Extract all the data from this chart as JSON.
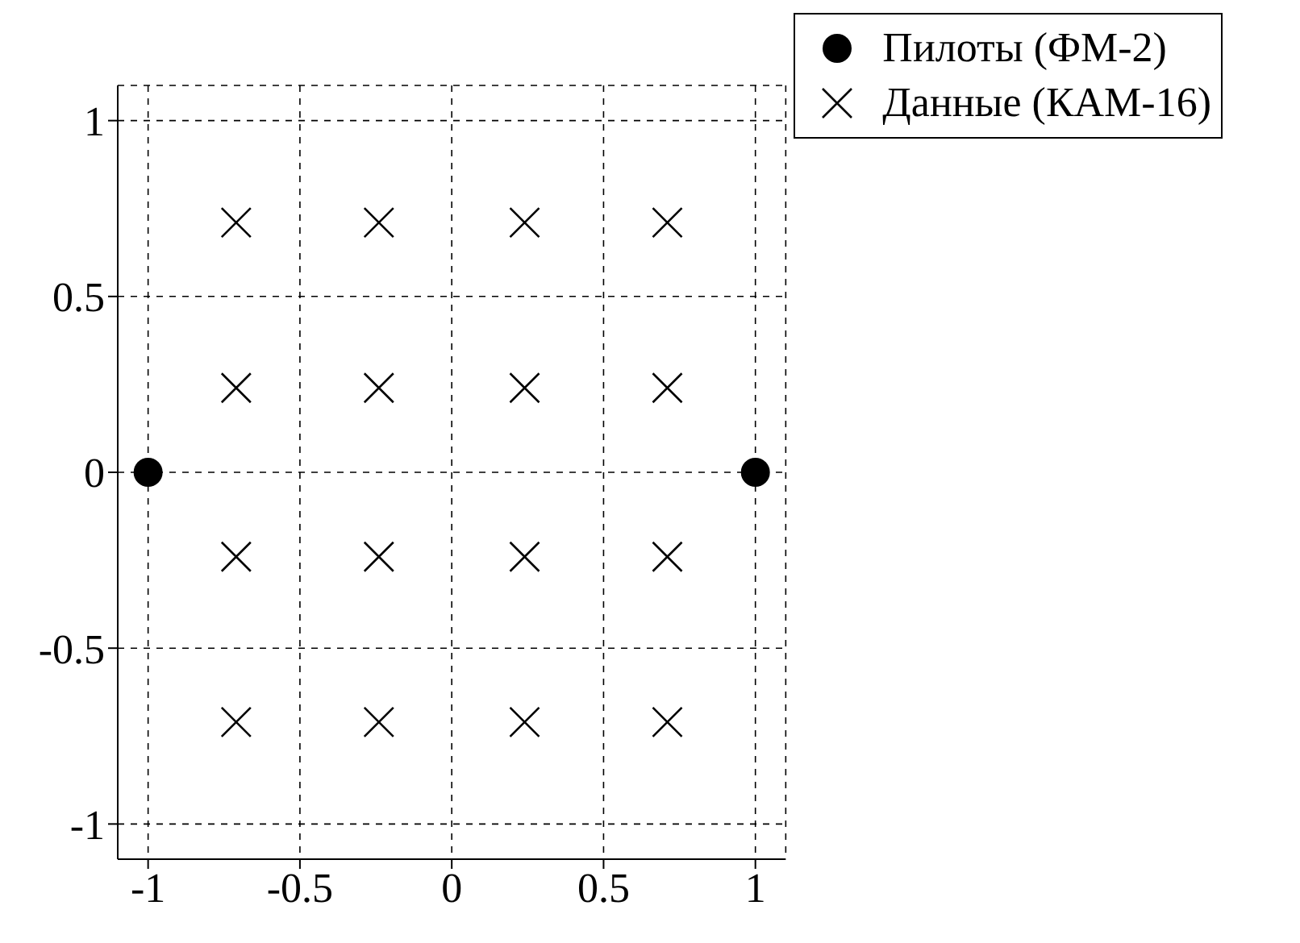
{
  "chart_data": {
    "type": "scatter",
    "xlim": [
      -1.1,
      1.1
    ],
    "ylim": [
      -1.1,
      1.1
    ],
    "xticks": [
      -1,
      -0.5,
      0,
      0.5,
      1
    ],
    "yticks": [
      -1,
      -0.5,
      0,
      0.5,
      1
    ],
    "grid": true,
    "legend": "top right",
    "series": [
      {
        "name": "Пилоты (ФМ-2)",
        "color": "#000000",
        "marker": "circle",
        "x": [
          -1,
          1
        ],
        "values": [
          0,
          0
        ]
      },
      {
        "name": "Данные (КАМ-16)",
        "color": "#000000",
        "marker": "cross",
        "x": [
          -0.71,
          -0.24,
          0.24,
          0.71,
          -0.71,
          -0.24,
          0.24,
          0.71,
          -0.71,
          -0.24,
          0.24,
          0.71,
          -0.71,
          -0.24,
          0.24,
          0.71
        ],
        "values": [
          0.71,
          0.71,
          0.71,
          0.71,
          0.24,
          0.24,
          0.24,
          0.24,
          -0.24,
          -0.24,
          -0.24,
          -0.24,
          -0.71,
          -0.71,
          -0.71,
          -0.71
        ]
      }
    ]
  }
}
